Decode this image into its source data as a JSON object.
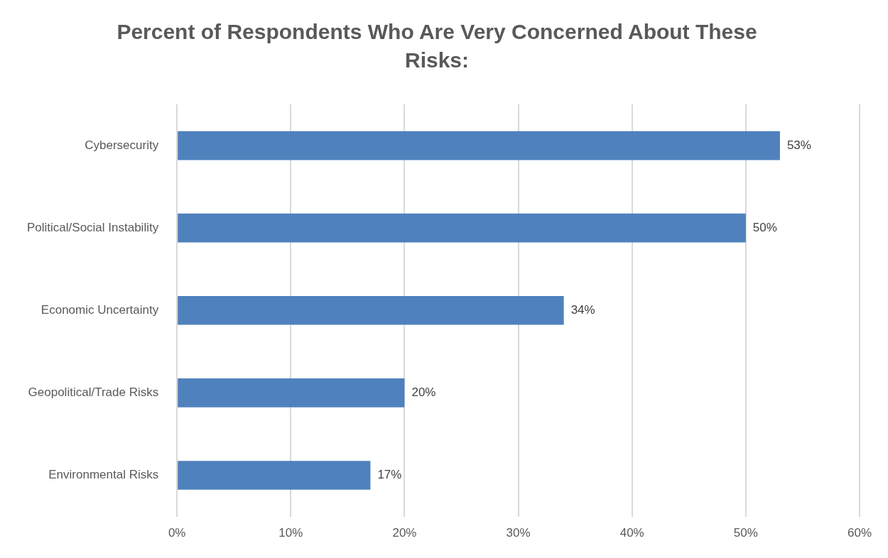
{
  "chart_data": {
    "type": "bar",
    "orientation": "horizontal",
    "title": "Percent of Respondents Who Are Very Concerned About These Risks:",
    "categories": [
      "Cybersecurity",
      "Political/Social Instability",
      "Economic Uncertainty",
      "Geopolitical/Trade Risks",
      "Environmental Risks"
    ],
    "values": [
      53,
      50,
      34,
      20,
      17
    ],
    "value_labels": [
      "53%",
      "50%",
      "34%",
      "20%",
      "17%"
    ],
    "color": "#4f81bd",
    "xlim": [
      0,
      60
    ],
    "xticks": [
      {
        "value": 0,
        "label": "0%"
      },
      {
        "value": 10,
        "label": "10%"
      },
      {
        "value": 20,
        "label": "20%"
      },
      {
        "value": 30,
        "label": "30%"
      },
      {
        "value": 40,
        "label": "40%"
      },
      {
        "value": 50,
        "label": "50%"
      },
      {
        "value": 60,
        "label": "60%"
      }
    ],
    "grid": "x",
    "legend": false
  }
}
